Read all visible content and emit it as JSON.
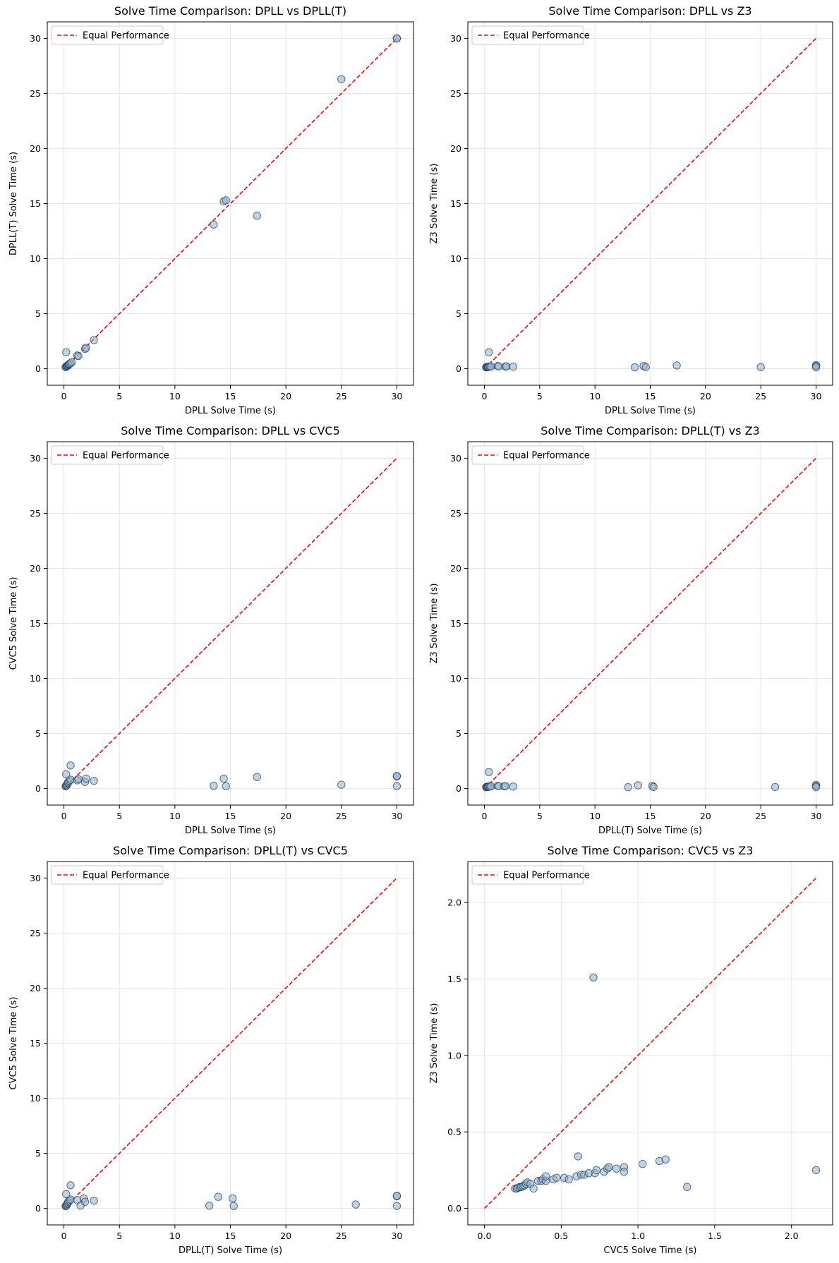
{
  "chart_data": [
    {
      "type": "scatter",
      "title": "Solve Time Comparison: DPLL vs DPLL(T)",
      "xlabel": "DPLL Solve Time (s)",
      "ylabel": "DPLL(T) Solve Time (s)",
      "xlim": [
        -1.5,
        31.5
      ],
      "ylim": [
        -1.5,
        31.5
      ],
      "xticks": [
        0,
        5,
        10,
        15,
        20,
        25,
        30
      ],
      "yticks": [
        0,
        5,
        10,
        15,
        20,
        25,
        30
      ],
      "legend": "Equal Performance",
      "diagonal": [
        0,
        30
      ],
      "points": [
        [
          0.15,
          0.15
        ],
        [
          0.2,
          0.18
        ],
        [
          0.25,
          0.22
        ],
        [
          0.3,
          0.28
        ],
        [
          0.35,
          0.3
        ],
        [
          0.4,
          0.35
        ],
        [
          0.45,
          0.4
        ],
        [
          0.5,
          0.45
        ],
        [
          0.6,
          0.5
        ],
        [
          0.7,
          0.6
        ],
        [
          0.2,
          1.5
        ],
        [
          1.2,
          1.2
        ],
        [
          1.3,
          1.15
        ],
        [
          1.9,
          1.8
        ],
        [
          2.0,
          1.9
        ],
        [
          2.7,
          2.6
        ],
        [
          13.5,
          13.1
        ],
        [
          14.4,
          15.2
        ],
        [
          14.6,
          15.3
        ],
        [
          17.4,
          13.9
        ],
        [
          25.0,
          26.3
        ],
        [
          30.0,
          30.0
        ],
        [
          30.0,
          30.0
        ]
      ]
    },
    {
      "type": "scatter",
      "title": "Solve Time Comparison: DPLL vs Z3",
      "xlabel": "DPLL Solve Time (s)",
      "ylabel": "Z3 Solve Time (s)",
      "xlim": [
        -1.5,
        31.5
      ],
      "ylim": [
        -1.5,
        31.5
      ],
      "xticks": [
        0,
        5,
        10,
        15,
        20,
        25,
        30
      ],
      "yticks": [
        0,
        5,
        10,
        15,
        20,
        25,
        30
      ],
      "legend": "Equal Performance",
      "diagonal": [
        0,
        30
      ],
      "points": [
        [
          0.15,
          0.13
        ],
        [
          0.2,
          0.14
        ],
        [
          0.25,
          0.15
        ],
        [
          0.3,
          0.16
        ],
        [
          0.35,
          0.17
        ],
        [
          0.4,
          0.18
        ],
        [
          0.5,
          0.19
        ],
        [
          0.6,
          0.2
        ],
        [
          0.4,
          1.5
        ],
        [
          1.2,
          0.25
        ],
        [
          1.3,
          0.22
        ],
        [
          1.9,
          0.2
        ],
        [
          2.0,
          0.22
        ],
        [
          2.6,
          0.18
        ],
        [
          13.6,
          0.13
        ],
        [
          14.4,
          0.25
        ],
        [
          14.6,
          0.14
        ],
        [
          17.4,
          0.3
        ],
        [
          25.0,
          0.14
        ],
        [
          30.0,
          0.33
        ],
        [
          30.0,
          0.25
        ],
        [
          30.0,
          0.13
        ]
      ]
    },
    {
      "type": "scatter",
      "title": "Solve Time Comparison: DPLL vs CVC5",
      "xlabel": "DPLL Solve Time (s)",
      "ylabel": "CVC5 Solve Time (s)",
      "xlim": [
        -1.5,
        31.5
      ],
      "ylim": [
        -1.5,
        31.5
      ],
      "xticks": [
        0,
        5,
        10,
        15,
        20,
        25,
        30
      ],
      "yticks": [
        0,
        5,
        10,
        15,
        20,
        25,
        30
      ],
      "legend": "Equal Performance",
      "diagonal": [
        0,
        30
      ],
      "points": [
        [
          0.15,
          0.2
        ],
        [
          0.2,
          0.25
        ],
        [
          0.25,
          0.3
        ],
        [
          0.3,
          0.4
        ],
        [
          0.35,
          0.5
        ],
        [
          0.4,
          0.6
        ],
        [
          0.5,
          0.7
        ],
        [
          0.6,
          0.8
        ],
        [
          0.2,
          1.3
        ],
        [
          0.6,
          2.1
        ],
        [
          1.2,
          0.75
        ],
        [
          1.3,
          0.85
        ],
        [
          1.9,
          0.6
        ],
        [
          2.0,
          0.9
        ],
        [
          2.7,
          0.7
        ],
        [
          13.5,
          0.25
        ],
        [
          14.4,
          0.9
        ],
        [
          14.6,
          0.22
        ],
        [
          17.4,
          1.05
        ],
        [
          25.0,
          0.35
        ],
        [
          30.0,
          1.1
        ],
        [
          30.0,
          1.15
        ],
        [
          30.0,
          0.22
        ]
      ]
    },
    {
      "type": "scatter",
      "title": "Solve Time Comparison: DPLL(T) vs Z3",
      "xlabel": "DPLL(T) Solve Time (s)",
      "ylabel": "Z3 Solve Time (s)",
      "xlim": [
        -1.5,
        31.5
      ],
      "ylim": [
        -1.5,
        31.5
      ],
      "xticks": [
        0,
        5,
        10,
        15,
        20,
        25,
        30
      ],
      "yticks": [
        0,
        5,
        10,
        15,
        20,
        25,
        30
      ],
      "legend": "Equal Performance",
      "diagonal": [
        0,
        30
      ],
      "points": [
        [
          0.15,
          0.13
        ],
        [
          0.2,
          0.14
        ],
        [
          0.25,
          0.15
        ],
        [
          0.3,
          0.16
        ],
        [
          0.35,
          0.17
        ],
        [
          0.4,
          0.18
        ],
        [
          0.5,
          0.19
        ],
        [
          0.6,
          0.2
        ],
        [
          0.4,
          1.5
        ],
        [
          1.2,
          0.25
        ],
        [
          1.3,
          0.22
        ],
        [
          1.8,
          0.2
        ],
        [
          1.9,
          0.22
        ],
        [
          2.6,
          0.18
        ],
        [
          13.0,
          0.13
        ],
        [
          13.9,
          0.3
        ],
        [
          15.2,
          0.25
        ],
        [
          15.3,
          0.14
        ],
        [
          26.3,
          0.14
        ],
        [
          30.0,
          0.33
        ],
        [
          30.0,
          0.25
        ],
        [
          30.0,
          0.13
        ]
      ]
    },
    {
      "type": "scatter",
      "title": "Solve Time Comparison: DPLL(T) vs CVC5",
      "xlabel": "DPLL(T) Solve Time (s)",
      "ylabel": "CVC5 Solve Time (s)",
      "xlim": [
        -1.5,
        31.5
      ],
      "ylim": [
        -1.5,
        31.5
      ],
      "xticks": [
        0,
        5,
        10,
        15,
        20,
        25,
        30
      ],
      "yticks": [
        0,
        5,
        10,
        15,
        20,
        25,
        30
      ],
      "legend": "Equal Performance",
      "diagonal": [
        0,
        30
      ],
      "points": [
        [
          0.15,
          0.2
        ],
        [
          0.2,
          0.25
        ],
        [
          0.25,
          0.3
        ],
        [
          0.3,
          0.4
        ],
        [
          0.35,
          0.5
        ],
        [
          0.4,
          0.6
        ],
        [
          0.5,
          0.7
        ],
        [
          0.6,
          0.8
        ],
        [
          0.2,
          1.3
        ],
        [
          0.6,
          2.1
        ],
        [
          1.2,
          0.75
        ],
        [
          1.5,
          0.25
        ],
        [
          1.8,
          0.9
        ],
        [
          1.9,
          0.6
        ],
        [
          2.7,
          0.7
        ],
        [
          13.1,
          0.25
        ],
        [
          13.9,
          1.05
        ],
        [
          15.2,
          0.9
        ],
        [
          15.3,
          0.22
        ],
        [
          26.3,
          0.35
        ],
        [
          30.0,
          1.1
        ],
        [
          30.0,
          1.15
        ],
        [
          30.0,
          0.22
        ]
      ]
    },
    {
      "type": "scatter",
      "title": "Solve Time Comparison: CVC5 vs Z3",
      "xlabel": "CVC5 Solve Time (s)",
      "ylabel": "Z3 Solve Time (s)",
      "xlim": [
        -0.108,
        2.268
      ],
      "ylim": [
        -0.108,
        2.268
      ],
      "xticks": [
        0.0,
        0.5,
        1.0,
        1.5,
        2.0
      ],
      "yticks": [
        0.0,
        0.5,
        1.0,
        1.5,
        2.0
      ],
      "legend": "Equal Performance",
      "diagonal": [
        0,
        2.16
      ],
      "points": [
        [
          0.2,
          0.13
        ],
        [
          0.21,
          0.13
        ],
        [
          0.22,
          0.135
        ],
        [
          0.23,
          0.14
        ],
        [
          0.24,
          0.14
        ],
        [
          0.25,
          0.145
        ],
        [
          0.26,
          0.15
        ],
        [
          0.27,
          0.16
        ],
        [
          0.28,
          0.17
        ],
        [
          0.3,
          0.16
        ],
        [
          0.32,
          0.13
        ],
        [
          0.35,
          0.18
        ],
        [
          0.37,
          0.18
        ],
        [
          0.38,
          0.19
        ],
        [
          0.4,
          0.18
        ],
        [
          0.4,
          0.21
        ],
        [
          0.45,
          0.19
        ],
        [
          0.47,
          0.2
        ],
        [
          0.52,
          0.2
        ],
        [
          0.55,
          0.19
        ],
        [
          0.6,
          0.21
        ],
        [
          0.61,
          0.34
        ],
        [
          0.63,
          0.22
        ],
        [
          0.65,
          0.22
        ],
        [
          0.68,
          0.23
        ],
        [
          0.72,
          0.23
        ],
        [
          0.73,
          0.25
        ],
        [
          0.71,
          1.51
        ],
        [
          0.78,
          0.24
        ],
        [
          0.8,
          0.26
        ],
        [
          0.81,
          0.27
        ],
        [
          0.86,
          0.26
        ],
        [
          0.91,
          0.27
        ],
        [
          0.91,
          0.24
        ],
        [
          1.03,
          0.29
        ],
        [
          1.14,
          0.31
        ],
        [
          1.18,
          0.32
        ],
        [
          1.32,
          0.14
        ],
        [
          2.16,
          0.25
        ]
      ]
    }
  ],
  "colors": {
    "point_fill": "#8fb0cc",
    "point_edge": "#1f3b57",
    "diagonal": "#ff0000",
    "grid": "#e6e6e6",
    "axes": "#000000"
  }
}
